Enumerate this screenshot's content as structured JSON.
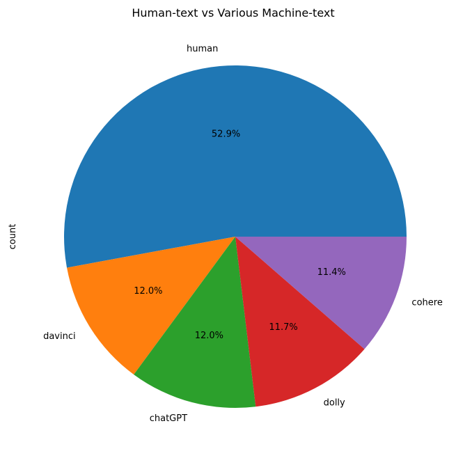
{
  "chart_data": {
    "type": "pie",
    "title": "Human-text vs Various Machine-text",
    "ylabel": "count",
    "xlabel": "",
    "start_angle_deg": 0,
    "direction": "counterclockwise",
    "slices": [
      {
        "name": "human",
        "value": 52.9,
        "pct_label": "52.9%",
        "color": "#1f77b4"
      },
      {
        "name": "davinci",
        "value": 12.0,
        "pct_label": "12.0%",
        "color": "#ff7f0e"
      },
      {
        "name": "chatGPT",
        "value": 12.0,
        "pct_label": "12.0%",
        "color": "#2ca02c"
      },
      {
        "name": "dolly",
        "value": 11.7,
        "pct_label": "11.7%",
        "color": "#d62728"
      },
      {
        "name": "cohere",
        "value": 11.4,
        "pct_label": "11.4%",
        "color": "#9467bd"
      }
    ]
  }
}
